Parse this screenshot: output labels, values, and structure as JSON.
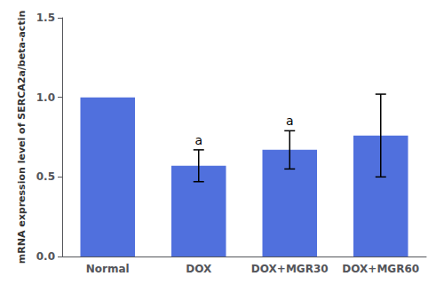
{
  "chart_data": {
    "type": "bar",
    "categories": [
      "Normal",
      "DOX",
      "DOX+MGR30",
      "DOX+MGR60"
    ],
    "values": [
      1.0,
      0.57,
      0.67,
      0.76
    ],
    "errors": [
      0.0,
      0.1,
      0.12,
      0.26
    ],
    "ylabel": "mRNA expression level of SERCA2a/beta-actin",
    "ylim": [
      0.0,
      1.5
    ],
    "yticks": [
      {
        "value": 0.0,
        "label": "0.0"
      },
      {
        "value": 0.5,
        "label": "0.5"
      },
      {
        "value": 1.0,
        "label": "1.0"
      },
      {
        "value": 1.5,
        "label": "1.5"
      }
    ],
    "annotations": [
      {
        "x": "DOX",
        "text": "a"
      },
      {
        "x": "DOX+MGR30",
        "text": "a"
      }
    ],
    "grid": false
  }
}
